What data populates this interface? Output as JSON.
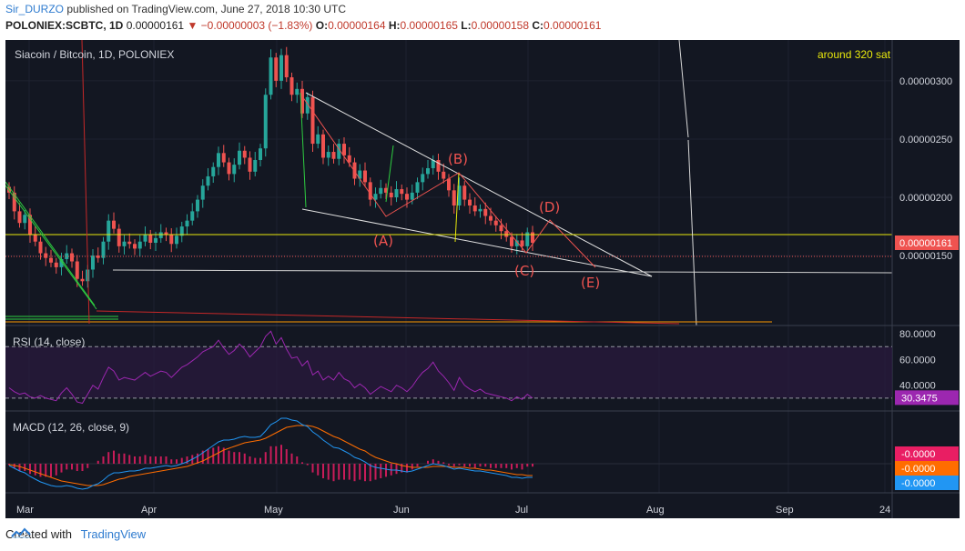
{
  "header": {
    "author": "Sir_DURZO",
    "published_text": "published on TradingView.com, June 27, 2018 10:30 UTC",
    "symbol": "POLONIEX:SCBTC, 1D",
    "last": "0.00000161",
    "change": "▼ −0.00000003 (−1.83%)",
    "o_label": "O:",
    "o_value": "0.00000164",
    "h_label": "H:",
    "h_value": "0.00000165",
    "l_label": "L:",
    "l_value": "0.00000158",
    "c_label": "C:",
    "c_value": "0.00000161"
  },
  "footer": {
    "created_with": "Created with",
    "brand": "TradingView"
  },
  "colors": {
    "bg": "#131722",
    "up": "#26a69a",
    "down": "#ef5350",
    "rsi": "#9c27b0",
    "macd": "#2196f3",
    "signal": "#ff6d00",
    "yellow": "#e8e80c"
  },
  "chart_data": {
    "type": "candlestick",
    "title": "Siacoin / Bitcoin, 1D, POLONIEX",
    "annotation": "around 320 sat",
    "x_ticks": [
      "Mar",
      "Apr",
      "May",
      "Jun",
      "Jul",
      "Aug",
      "Sep",
      "24"
    ],
    "y_ticks": [
      "0.00000300",
      "0.00000250",
      "0.00000200",
      "0.00000150"
    ],
    "y_ticks_values": [
      3.0,
      2.5,
      2.0,
      1.5
    ],
    "ylim": [
      0.9,
      3.35
    ],
    "last_price_label": "0.00000161",
    "last_price": 1.61,
    "yellow_level": 1.76,
    "wave_labels": [
      "(A)",
      "(B)",
      "(C)",
      "(D)",
      "(E)"
    ],
    "closes": [
      2.04,
      1.88,
      1.78,
      1.85,
      1.68,
      1.62,
      1.52,
      1.48,
      1.44,
      1.4,
      1.47,
      1.52,
      1.45,
      1.3,
      1.28,
      1.38,
      1.5,
      1.48,
      1.62,
      1.8,
      1.73,
      1.58,
      1.62,
      1.6,
      1.56,
      1.62,
      1.68,
      1.61,
      1.65,
      1.7,
      1.68,
      1.6,
      1.67,
      1.75,
      1.8,
      1.88,
      1.98,
      2.1,
      2.18,
      2.26,
      2.38,
      2.3,
      2.2,
      2.28,
      2.4,
      2.34,
      2.22,
      2.32,
      2.42,
      2.88,
      3.2,
      3.0,
      3.22,
      3.03,
      2.88,
      2.93,
      2.72,
      2.86,
      2.46,
      2.54,
      2.34,
      2.39,
      2.33,
      2.46,
      2.36,
      2.3,
      2.16,
      2.23,
      2.13,
      1.98,
      2.03,
      2.08,
      2.04,
      2.0,
      2.07,
      2.03,
      1.98,
      2.04,
      2.13,
      2.2,
      2.25,
      2.32,
      2.22,
      2.16,
      2.06,
      1.93,
      2.1,
      1.98,
      1.93,
      1.88,
      1.9,
      1.84,
      1.8,
      1.76,
      1.71,
      1.66,
      1.58,
      1.63,
      1.58,
      1.7,
      1.61
    ],
    "rsi": {
      "label": "RSI (14, close)",
      "ticks": [
        "80.0000",
        "60.0000",
        "40.0000"
      ],
      "ticks_values": [
        80,
        60,
        40
      ],
      "bands": [
        70,
        30
      ],
      "current_label": "30.3475",
      "current": 30.35,
      "values": [
        38,
        35,
        33,
        34,
        31,
        30,
        32,
        30,
        29,
        28,
        34,
        38,
        33,
        27,
        26,
        33,
        40,
        37,
        46,
        54,
        51,
        44,
        46,
        45,
        44,
        47,
        50,
        47,
        49,
        51,
        50,
        46,
        50,
        54,
        56,
        59,
        62,
        66,
        68,
        70,
        75,
        69,
        64,
        67,
        72,
        68,
        62,
        66,
        70,
        78,
        82,
        72,
        77,
        68,
        61,
        62,
        55,
        59,
        48,
        51,
        44,
        47,
        44,
        50,
        45,
        43,
        38,
        41,
        38,
        33,
        36,
        39,
        37,
        35,
        40,
        38,
        35,
        39,
        45,
        50,
        53,
        58,
        51,
        47,
        42,
        36,
        46,
        40,
        37,
        35,
        37,
        34,
        33,
        32,
        31,
        30,
        28,
        31,
        29,
        33,
        30
      ]
    },
    "macd": {
      "label": "MACD (12, 26, close, 9)",
      "value_labels": [
        "-0.0000",
        "-0.0000",
        "-0.0000"
      ],
      "macd": [
        -0.02,
        -0.05,
        -0.08,
        -0.1,
        -0.14,
        -0.17,
        -0.2,
        -0.22,
        -0.24,
        -0.25,
        -0.25,
        -0.24,
        -0.25,
        -0.27,
        -0.28,
        -0.27,
        -0.24,
        -0.22,
        -0.18,
        -0.13,
        -0.1,
        -0.1,
        -0.09,
        -0.08,
        -0.08,
        -0.07,
        -0.05,
        -0.05,
        -0.04,
        -0.03,
        -0.02,
        -0.03,
        -0.02,
        0.0,
        0.02,
        0.05,
        0.08,
        0.12,
        0.16,
        0.2,
        0.24,
        0.26,
        0.26,
        0.27,
        0.29,
        0.3,
        0.29,
        0.29,
        0.3,
        0.36,
        0.43,
        0.46,
        0.5,
        0.5,
        0.48,
        0.47,
        0.43,
        0.41,
        0.35,
        0.31,
        0.26,
        0.22,
        0.18,
        0.17,
        0.14,
        0.11,
        0.07,
        0.05,
        0.02,
        -0.02,
        -0.04,
        -0.05,
        -0.06,
        -0.07,
        -0.07,
        -0.08,
        -0.09,
        -0.08,
        -0.06,
        -0.04,
        -0.02,
        0.0,
        -0.01,
        -0.02,
        -0.04,
        -0.06,
        -0.05,
        -0.06,
        -0.07,
        -0.08,
        -0.08,
        -0.09,
        -0.1,
        -0.11,
        -0.12,
        -0.13,
        -0.15,
        -0.15,
        -0.16,
        -0.15,
        -0.15
      ],
      "signal": [
        -0.01,
        -0.02,
        -0.03,
        -0.05,
        -0.07,
        -0.09,
        -0.11,
        -0.13,
        -0.15,
        -0.17,
        -0.19,
        -0.2,
        -0.21,
        -0.22,
        -0.23,
        -0.24,
        -0.24,
        -0.24,
        -0.23,
        -0.21,
        -0.19,
        -0.17,
        -0.16,
        -0.14,
        -0.13,
        -0.12,
        -0.11,
        -0.1,
        -0.09,
        -0.08,
        -0.07,
        -0.06,
        -0.05,
        -0.04,
        -0.03,
        -0.01,
        0.01,
        0.03,
        0.06,
        0.09,
        0.12,
        0.15,
        0.17,
        0.19,
        0.21,
        0.23,
        0.24,
        0.25,
        0.26,
        0.28,
        0.31,
        0.34,
        0.37,
        0.4,
        0.41,
        0.42,
        0.42,
        0.42,
        0.41,
        0.39,
        0.36,
        0.33,
        0.3,
        0.28,
        0.25,
        0.22,
        0.19,
        0.16,
        0.14,
        0.1,
        0.07,
        0.05,
        0.03,
        0.01,
        0.0,
        -0.02,
        -0.03,
        -0.04,
        -0.04,
        -0.04,
        -0.04,
        -0.03,
        -0.03,
        -0.03,
        -0.03,
        -0.04,
        -0.04,
        -0.04,
        -0.05,
        -0.05,
        -0.06,
        -0.07,
        -0.07,
        -0.08,
        -0.09,
        -0.1,
        -0.11,
        -0.12,
        -0.12,
        -0.13,
        -0.13
      ]
    }
  }
}
